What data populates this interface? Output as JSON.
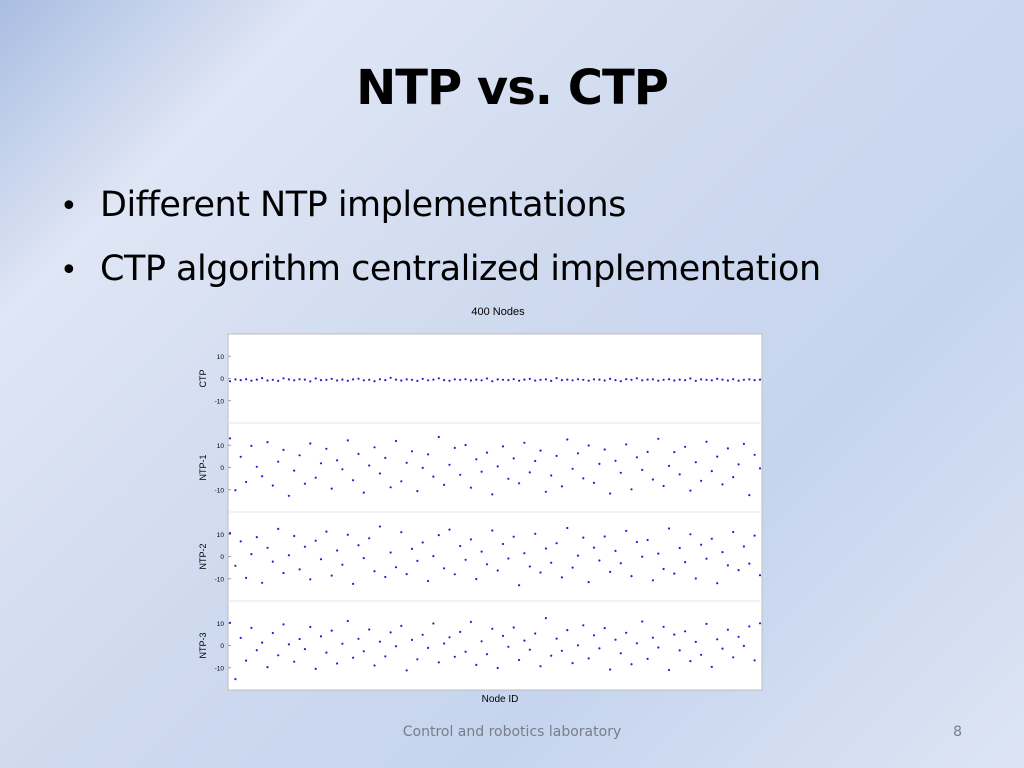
{
  "slide": {
    "title": "NTP vs. CTP",
    "bullets": [
      "Different NTP implementations",
      "CTP algorithm centralized implementation"
    ],
    "footer": "Control and robotics laboratory",
    "page_number": "8"
  },
  "chart_data": {
    "type": "scatter",
    "title": "400 Nodes",
    "xlabel": "Node ID",
    "xlim": [
      1,
      400
    ],
    "x_tick_labels_shown": false,
    "grid": false,
    "marker_color": "#1f1fd6",
    "panels": [
      {
        "ylabel": "CTP",
        "ylim": [
          -20,
          20
        ],
        "yticks": [
          10,
          0,
          -10
        ],
        "values": [
          -1.2,
          -0.4,
          -0.7,
          -0.3,
          -1.0,
          -0.5,
          0.2,
          -0.9,
          -0.6,
          -1.1,
          0.1,
          -0.4,
          -0.8,
          -0.3,
          -0.5,
          -1.3,
          0.0,
          -0.7,
          -0.6,
          -0.2,
          -0.9,
          -0.5,
          -1.0,
          -0.4,
          -0.1,
          -0.8,
          -0.6,
          -1.2,
          -0.3,
          -0.7,
          0.3,
          -0.5,
          -0.9,
          -0.4,
          -0.6,
          -1.1,
          -0.2,
          -0.8,
          -0.5,
          0.1,
          -0.7,
          -1.0,
          -0.4,
          -0.6,
          -0.3,
          -0.9,
          -0.5,
          -0.8,
          0.0,
          -1.2,
          -0.4,
          -0.6,
          -0.7,
          -0.3,
          -1.0,
          -0.5,
          -0.2,
          -0.9,
          -0.6,
          -0.4,
          -1.1,
          0.2,
          -0.7,
          -0.5,
          -0.8,
          -0.3,
          -0.6,
          -1.0,
          -0.4,
          -0.5,
          -0.9,
          -0.2,
          -0.7,
          -1.2,
          -0.3,
          -0.6,
          0.1,
          -0.8,
          -0.5,
          -0.4,
          -1.0,
          -0.6,
          -0.3,
          -0.9,
          -0.5,
          -0.7,
          0.0,
          -1.1,
          -0.4,
          -0.6,
          -0.8,
          -0.2,
          -0.5,
          -0.9,
          -0.3,
          -1.0,
          -0.6,
          -0.4,
          -0.7,
          -0.5
        ]
      },
      {
        "ylabel": "NTP-1",
        "ylim": [
          -20,
          20
        ],
        "yticks": [
          10,
          0,
          -10
        ],
        "values": [
          13.1,
          -10.2,
          4.8,
          -6.5,
          9.7,
          0.3,
          -3.9,
          11.4,
          -8.1,
          2.6,
          7.9,
          -12.7,
          -1.4,
          5.5,
          -7.3,
          10.8,
          -4.6,
          1.9,
          8.4,
          -9.5,
          3.2,
          -0.8,
          12.2,
          -5.7,
          6.1,
          -11.3,
          0.9,
          9.1,
          -2.7,
          4.3,
          -8.9,
          11.9,
          -6.2,
          2.1,
          7.3,
          -10.6,
          -0.2,
          5.9,
          -4.1,
          13.7,
          -7.8,
          1.2,
          8.8,
          -3.3,
          10.1,
          -9.1,
          3.7,
          -1.9,
          6.7,
          -12.1,
          0.5,
          9.5,
          -5.1,
          4.1,
          -7.1,
          11.1,
          -2.2,
          2.9,
          7.6,
          -10.9,
          -3.6,
          5.2,
          -8.5,
          12.6,
          -0.6,
          6.4,
          -4.9,
          9.9,
          -6.9,
          1.6,
          8.1,
          -11.7,
          3.0,
          -2.4,
          10.4,
          -9.8,
          4.6,
          -1.1,
          7.0,
          -5.4,
          12.9,
          -8.3,
          0.7,
          6.9,
          -3.1,
          9.3,
          -10.4,
          2.4,
          -6.0,
          11.6,
          -1.6,
          4.9,
          -7.6,
          8.6,
          -4.3,
          1.4,
          10.6,
          -12.4,
          5.7,
          -0.4
        ]
      },
      {
        "ylabel": "NTP-2",
        "ylim": [
          -20,
          20
        ],
        "yticks": [
          10,
          0,
          -10
        ],
        "values": [
          10.5,
          -4.2,
          6.8,
          -9.6,
          1.1,
          8.7,
          -11.8,
          3.9,
          -2.3,
          12.4,
          -7.4,
          0.6,
          9.2,
          -5.8,
          4.4,
          -10.3,
          7.1,
          -1.2,
          11.2,
          -8.6,
          2.7,
          -3.7,
          9.8,
          -12.3,
          5.1,
          -0.7,
          8.2,
          -6.6,
          13.5,
          -9.2,
          1.8,
          -4.8,
          10.9,
          -7.9,
          3.4,
          -2.0,
          6.3,
          -11.0,
          0.2,
          9.6,
          -5.3,
          12.1,
          -8.0,
          4.7,
          -1.5,
          7.7,
          -10.1,
          2.2,
          -3.5,
          11.7,
          -6.3,
          5.6,
          -0.9,
          8.9,
          -12.9,
          1.5,
          -4.5,
          10.2,
          -7.2,
          3.6,
          -2.8,
          6.0,
          -9.4,
          12.8,
          -5.0,
          0.4,
          8.5,
          -11.5,
          4.0,
          -1.8,
          9.0,
          -6.9,
          2.5,
          -3.0,
          11.5,
          -8.8,
          6.5,
          -0.1,
          7.4,
          -10.7,
          1.3,
          -5.6,
          12.6,
          -7.7,
          3.8,
          -2.5,
          10.0,
          -9.9,
          5.3,
          -1.0,
          8.0,
          -12.0,
          2.0,
          -4.0,
          11.0,
          -6.1,
          4.5,
          -3.2,
          9.4,
          -8.4
        ]
      },
      {
        "ylabel": "NTP-3",
        "ylim": [
          -20,
          20
        ],
        "yticks": [
          10,
          0,
          -10
        ],
        "values": [
          10.2,
          -15.1,
          3.4,
          -6.8,
          7.9,
          -2.1,
          1.3,
          -9.7,
          5.6,
          -4.4,
          9.5,
          0.5,
          -7.3,
          2.9,
          -1.6,
          8.3,
          -10.5,
          4.1,
          -3.2,
          6.7,
          -8.1,
          0.8,
          11.0,
          -5.5,
          3.0,
          -2.6,
          7.2,
          -9.0,
          1.7,
          -4.9,
          5.9,
          -0.3,
          8.8,
          -11.2,
          2.5,
          -6.2,
          4.8,
          -1.1,
          9.9,
          -7.6,
          0.9,
          3.7,
          -5.1,
          6.1,
          -2.8,
          10.6,
          -8.7,
          1.9,
          -3.9,
          7.5,
          -10.1,
          4.3,
          -0.6,
          8.1,
          -6.5,
          2.2,
          -1.9,
          5.4,
          -9.3,
          12.3,
          -4.6,
          3.1,
          -2.4,
          6.9,
          -7.9,
          0.1,
          9.1,
          -5.8,
          4.6,
          -1.3,
          7.8,
          -10.8,
          2.6,
          -3.5,
          5.7,
          -8.4,
          1.0,
          10.8,
          -6.0,
          3.5,
          -0.9,
          8.4,
          -11.0,
          4.9,
          -2.2,
          6.4,
          -7.0,
          1.6,
          -4.2,
          9.7,
          -9.6,
          2.8,
          -1.4,
          7.1,
          -5.3,
          3.9,
          -0.2,
          8.6,
          -6.7,
          10.0
        ]
      }
    ]
  }
}
